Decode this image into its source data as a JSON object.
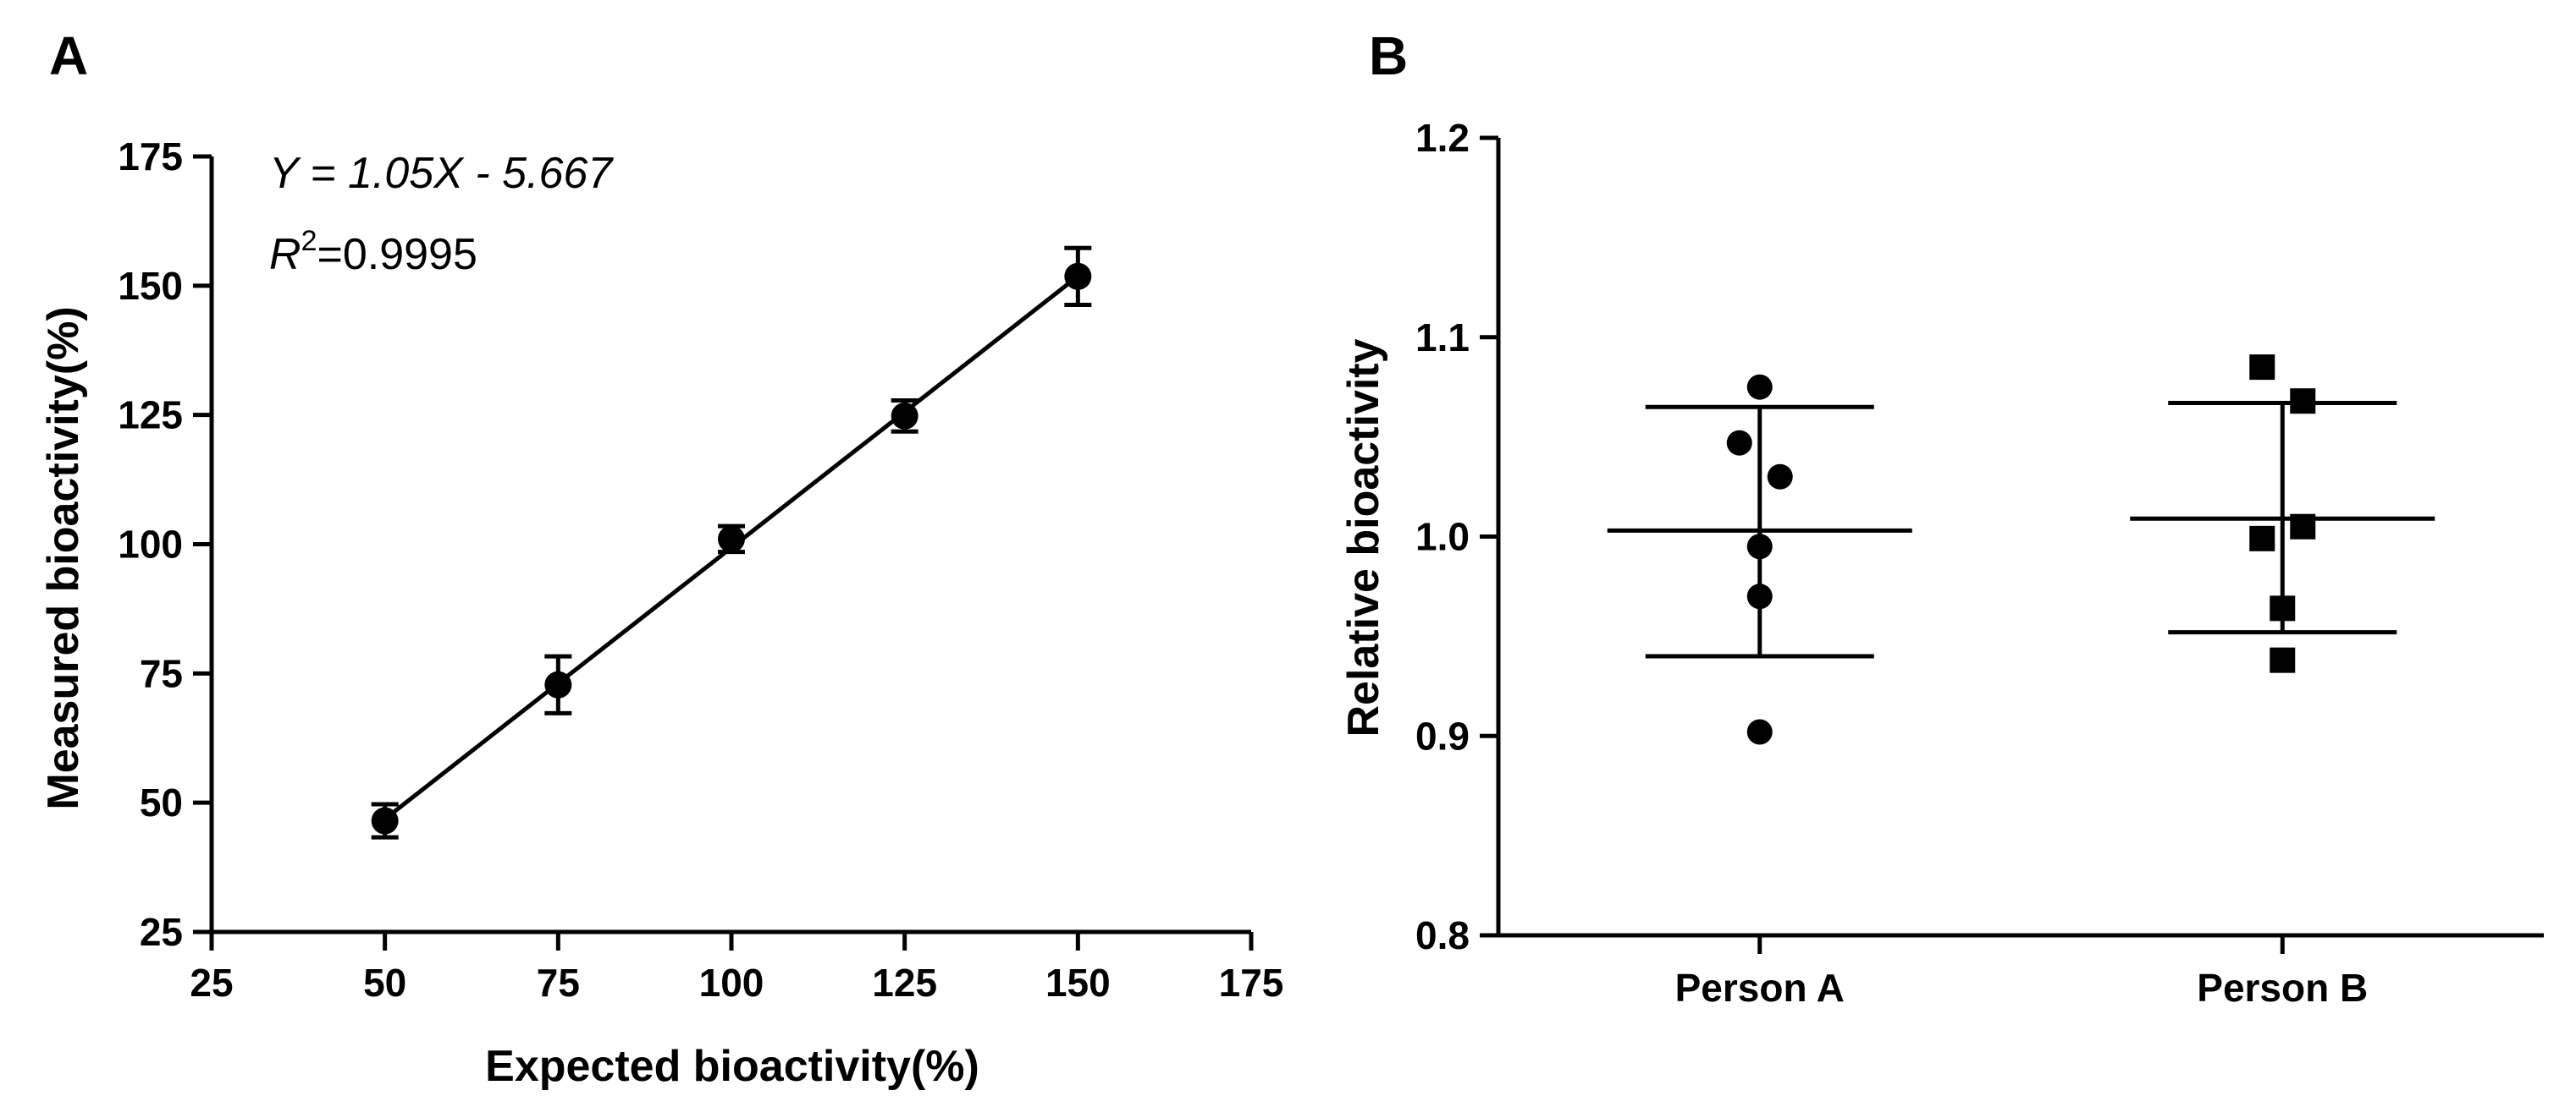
{
  "panels": {
    "a": {
      "letter": "A"
    },
    "b": {
      "letter": "B"
    }
  },
  "chart_data": [
    {
      "id": "A",
      "type": "scatter",
      "xlabel": "Expected bioactivity(%)",
      "ylabel": "Measured bioactivity(%)",
      "xlim": [
        25,
        175
      ],
      "ylim": [
        25,
        175
      ],
      "xticks": [
        25,
        50,
        75,
        100,
        125,
        150,
        175
      ],
      "yticks": [
        25,
        50,
        75,
        100,
        125,
        150,
        175
      ],
      "points": [
        {
          "x": 50,
          "y": 46.5,
          "err": 3.2
        },
        {
          "x": 75,
          "y": 72.8,
          "err": 5.5
        },
        {
          "x": 100,
          "y": 101,
          "err": 2.5
        },
        {
          "x": 125,
          "y": 124.8,
          "err": 3.0
        },
        {
          "x": 150,
          "y": 151.8,
          "err": 5.5
        }
      ],
      "fit": {
        "slope": 1.05,
        "intercept": -5.667,
        "x_range": [
          50,
          150
        ]
      },
      "annotations": {
        "equation": "Y = 1.05X - 5.667",
        "r2_label": "R",
        "r2_sup": "2",
        "r2_value": "=0.9995"
      },
      "marker": "circle",
      "grid": false
    },
    {
      "id": "B",
      "type": "scatter",
      "ylabel": "Relative bioactivity",
      "ylim": [
        0.8,
        1.2
      ],
      "yticks": [
        "0.8",
        "0.9",
        "1.0",
        "1.1",
        "1.2"
      ],
      "categories": [
        "Person A",
        "Person B"
      ],
      "groups": [
        {
          "category": "Person A",
          "marker": "circle",
          "points": [
            {
              "y": 1.075,
              "offset": 0
            },
            {
              "y": 1.047,
              "offset": -1
            },
            {
              "y": 1.03,
              "offset": 1
            },
            {
              "y": 0.995,
              "offset": 0
            },
            {
              "y": 0.97,
              "offset": 0
            },
            {
              "y": 0.902,
              "offset": 0
            }
          ],
          "mean": 1.003,
          "upper": 1.065,
          "lower": 0.94
        },
        {
          "category": "Person B",
          "marker": "square",
          "points": [
            {
              "y": 1.085,
              "offset": -1
            },
            {
              "y": 1.068,
              "offset": 1
            },
            {
              "y": 1.005,
              "offset": 1
            },
            {
              "y": 0.999,
              "offset": -1
            },
            {
              "y": 0.964,
              "offset": 0
            },
            {
              "y": 0.938,
              "offset": 0
            }
          ],
          "mean": 1.009,
          "upper": 1.067,
          "lower": 0.952
        }
      ],
      "grid": false
    }
  ]
}
